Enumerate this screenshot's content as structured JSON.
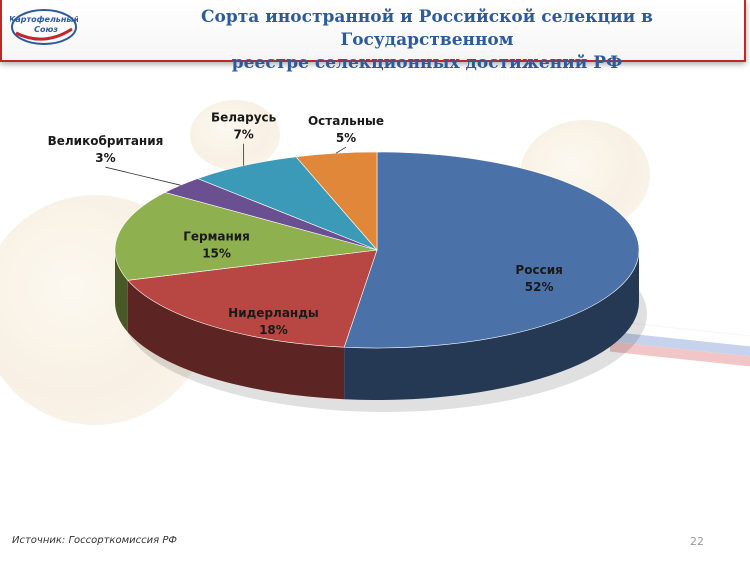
{
  "header": {
    "logo_text_line1": "Картофельный",
    "logo_text_line2": "Союз",
    "title_line1": "Сорта иностранной и Российской селекции в Государственном",
    "title_line2": "реестре селекционных достижений РФ"
  },
  "footer": {
    "source": "Источник: Госсорткомиссия РФ",
    "page_number": "22"
  },
  "colors": {
    "title": "#2e5a9a",
    "header_border": "#c0262c"
  },
  "chart_data": {
    "type": "pie",
    "title": "",
    "unit": "%",
    "slices": [
      {
        "name": "Россия",
        "value": 52,
        "label": "52%",
        "color": "#4a72a8"
      },
      {
        "name": "Нидерланды",
        "value": 18,
        "label": "18%",
        "color": "#b84744"
      },
      {
        "name": "Германия",
        "value": 15,
        "label": "15%",
        "color": "#8fb04e"
      },
      {
        "name": "Великобритания",
        "value": 3,
        "label": "3%",
        "color": "#6a5090"
      },
      {
        "name": "Беларусь",
        "value": 7,
        "label": "7%",
        "color": "#3a9ab8"
      },
      {
        "name": "Остальные",
        "value": 5,
        "label": "5%",
        "color": "#e0873a"
      }
    ]
  }
}
